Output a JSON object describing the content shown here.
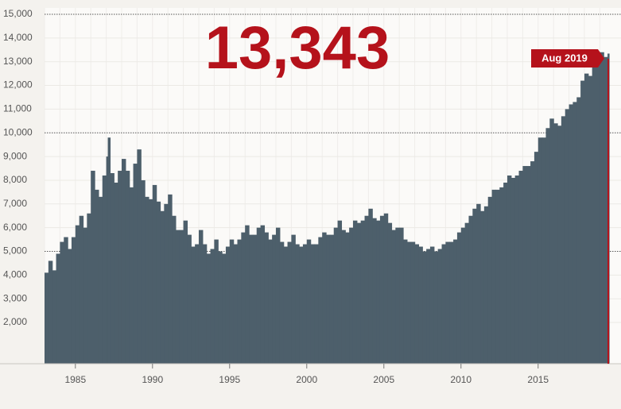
{
  "chart_data": {
    "type": "step-area",
    "headline": "13,343",
    "annotation": "Aug 2019",
    "color": "#4d5f6b",
    "accent": "#b5121b",
    "grid": true,
    "xlim": [
      1983,
      2019.6
    ],
    "xticks": [
      1985,
      1990,
      1995,
      2000,
      2005,
      2010,
      2015
    ],
    "ylim": [
      260,
      15000
    ],
    "yticks": [
      {
        "value": 2000,
        "label": "2,000"
      },
      {
        "value": 3000,
        "label": "3,000"
      },
      {
        "value": 4000,
        "label": "4,000"
      },
      {
        "value": 5000,
        "label": "5,000"
      },
      {
        "value": 6000,
        "label": "6,000"
      },
      {
        "value": 7000,
        "label": "7,000"
      },
      {
        "value": 8000,
        "label": "8,000"
      },
      {
        "value": 9000,
        "label": "9,000"
      },
      {
        "value": 10000,
        "label": "10,000"
      },
      {
        "value": 11000,
        "label": "11,000"
      },
      {
        "value": 12000,
        "label": "12,000"
      },
      {
        "value": 13000,
        "label": "13,000"
      },
      {
        "value": 14000,
        "label": "14,000"
      },
      {
        "value": 15000,
        "label": "15,000"
      }
    ],
    "x": [
      1983.0,
      1983.25,
      1983.5,
      1983.75,
      1984.0,
      1984.25,
      1984.5,
      1984.75,
      1985.0,
      1985.25,
      1985.5,
      1985.75,
      1986.0,
      1986.25,
      1986.5,
      1986.75,
      1987.0,
      1987.1,
      1987.25,
      1987.5,
      1987.75,
      1988.0,
      1988.25,
      1988.5,
      1988.75,
      1989.0,
      1989.25,
      1989.5,
      1989.75,
      1990.0,
      1990.25,
      1990.5,
      1990.75,
      1991.0,
      1991.25,
      1991.5,
      1991.75,
      1992.0,
      1992.25,
      1992.5,
      1992.75,
      1993.0,
      1993.25,
      1993.5,
      1993.75,
      1994.0,
      1994.25,
      1994.5,
      1994.75,
      1995.0,
      1995.25,
      1995.5,
      1995.75,
      1996.0,
      1996.25,
      1996.5,
      1996.75,
      1997.0,
      1997.25,
      1997.5,
      1997.75,
      1998.0,
      1998.25,
      1998.5,
      1998.75,
      1999.0,
      1999.25,
      1999.5,
      1999.75,
      2000.0,
      2000.25,
      2000.5,
      2000.75,
      2001.0,
      2001.25,
      2001.5,
      2001.75,
      2002.0,
      2002.25,
      2002.5,
      2002.75,
      2003.0,
      2003.25,
      2003.5,
      2003.75,
      2004.0,
      2004.25,
      2004.5,
      2004.75,
      2005.0,
      2005.25,
      2005.5,
      2005.75,
      2006.0,
      2006.25,
      2006.5,
      2006.75,
      2007.0,
      2007.25,
      2007.5,
      2007.75,
      2008.0,
      2008.25,
      2008.5,
      2008.75,
      2009.0,
      2009.25,
      2009.5,
      2009.75,
      2010.0,
      2010.25,
      2010.5,
      2010.75,
      2011.0,
      2011.25,
      2011.5,
      2011.75,
      2012.0,
      2012.25,
      2012.5,
      2012.75,
      2013.0,
      2013.25,
      2013.5,
      2013.75,
      2014.0,
      2014.25,
      2014.5,
      2014.75,
      2015.0,
      2015.25,
      2015.5,
      2015.75,
      2016.0,
      2016.25,
      2016.5,
      2016.75,
      2017.0,
      2017.25,
      2017.5,
      2017.75,
      2018.0,
      2018.25,
      2018.5,
      2018.75,
      2019.0,
      2019.25,
      2019.5
    ],
    "values": [
      4100,
      4600,
      4200,
      4900,
      5400,
      5600,
      5100,
      5600,
      6100,
      6500,
      6000,
      6600,
      8400,
      7600,
      7300,
      8200,
      9000,
      9800,
      8300,
      7900,
      8400,
      8900,
      8400,
      7700,
      8700,
      9300,
      8000,
      7300,
      7200,
      7800,
      7100,
      6700,
      7000,
      7400,
      6500,
      5900,
      5900,
      6300,
      5700,
      5200,
      5300,
      5900,
      5300,
      4900,
      5100,
      5500,
      5000,
      4900,
      5200,
      5500,
      5300,
      5500,
      5800,
      6100,
      5700,
      5700,
      6000,
      6100,
      5800,
      5500,
      5700,
      6000,
      5400,
      5200,
      5400,
      5700,
      5300,
      5200,
      5300,
      5500,
      5300,
      5300,
      5600,
      5800,
      5700,
      5700,
      6000,
      6300,
      5900,
      5800,
      6000,
      6300,
      6200,
      6300,
      6500,
      6800,
      6400,
      6300,
      6500,
      6600,
      6200,
      5900,
      6000,
      6000,
      5500,
      5400,
      5400,
      5300,
      5200,
      5000,
      5100,
      5200,
      5000,
      5100,
      5300,
      5400,
      5400,
      5500,
      5800,
      6000,
      6200,
      6500,
      6800,
      7000,
      6700,
      6900,
      7300,
      7600,
      7600,
      7700,
      7900,
      8200,
      8100,
      8200,
      8400,
      8600,
      8600,
      8800,
      9200,
      9800,
      9800,
      10200,
      10600,
      10400,
      10300,
      10700,
      11000,
      11200,
      11300,
      11500,
      12200,
      12500,
      12400,
      12800,
      13200,
      13400,
      13200,
      13343
    ]
  }
}
